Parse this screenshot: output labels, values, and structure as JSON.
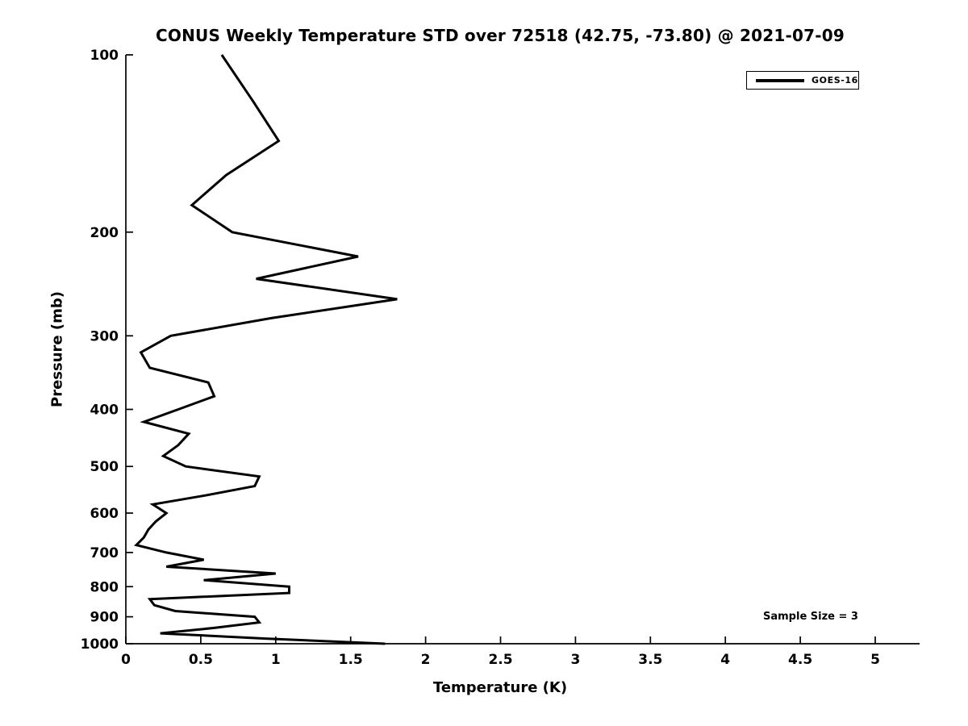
{
  "figure": {
    "title": "CONUS Weekly Temperature STD over 72518 (42.75, -73.80) @ 2021-07-09",
    "background_color": "#ffffff",
    "line_color": "#000000",
    "text_color": "#000000"
  },
  "legend": {
    "entries": [
      {
        "label": "GOES-16",
        "line_color": "#000000"
      }
    ],
    "position": "upper right"
  },
  "annotation": {
    "text": "Sample Size = 3",
    "position": "lower right"
  },
  "chart_data": {
    "type": "line",
    "title": "CONUS Weekly Temperature STD over 72518 (42.75, -73.80) @ 2021-07-09",
    "xlabel": "Temperature (K)",
    "ylabel": "Pressure (mb)",
    "xlim": [
      0,
      5
    ],
    "ylim": [
      100,
      1000
    ],
    "y_scale": "log",
    "y_inverted": true,
    "grid": false,
    "x_ticks": [
      0,
      0.5,
      1,
      1.5,
      2,
      2.5,
      3,
      3.5,
      4,
      4.5,
      5
    ],
    "x_tick_labels": [
      "0",
      "0.5",
      "1",
      "1.5",
      "2",
      "2.5",
      "3",
      "3.5",
      "4",
      "4.5",
      "5"
    ],
    "y_ticks": [
      100,
      200,
      300,
      400,
      500,
      600,
      700,
      800,
      900,
      1000
    ],
    "y_tick_labels": [
      "100",
      "200",
      "300",
      "400",
      "500",
      "600",
      "700",
      "800",
      "900",
      "1000"
    ],
    "legend_entries": [
      "GOES-16"
    ],
    "annotation_text": "Sample Size = 3",
    "series": [
      {
        "name": "GOES-16",
        "color": "#000000",
        "pressure_mb": [
          100,
          120,
          140,
          160,
          180,
          200,
          220,
          240,
          260,
          280,
          300,
          320,
          340,
          360,
          380,
          400,
          420,
          440,
          460,
          480,
          500,
          520,
          540,
          560,
          580,
          600,
          620,
          640,
          660,
          680,
          700,
          720,
          740,
          760,
          780,
          800,
          820,
          840,
          860,
          880,
          900,
          920,
          940,
          960,
          980,
          1000
        ],
        "temperature_std_k": [
          0.64,
          0.85,
          1.02,
          0.67,
          0.44,
          0.71,
          1.55,
          0.87,
          1.81,
          0.97,
          0.3,
          0.1,
          0.16,
          0.55,
          0.59,
          0.35,
          0.12,
          0.42,
          0.35,
          0.25,
          0.4,
          0.89,
          0.86,
          0.53,
          0.18,
          0.27,
          0.2,
          0.15,
          0.12,
          0.07,
          0.27,
          0.52,
          0.27,
          1.0,
          0.52,
          1.09,
          1.09,
          0.16,
          0.19,
          0.33,
          0.86,
          0.89,
          0.59,
          0.23,
          0.93,
          1.73
        ]
      }
    ]
  }
}
